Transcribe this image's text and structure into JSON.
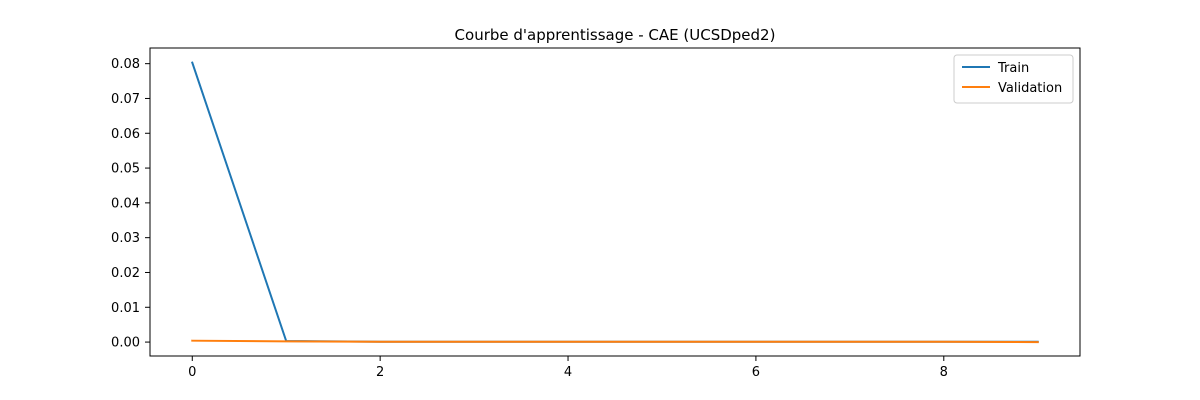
{
  "chart_data": {
    "type": "line",
    "title": "Courbe d'apprentissage - CAE (UCSDped2)",
    "xlabel": "",
    "ylabel": "",
    "x": [
      0,
      1,
      2,
      3,
      4,
      5,
      6,
      7,
      8,
      9
    ],
    "series": [
      {
        "name": "Train",
        "color": "#1f77b4",
        "values": [
          0.0803,
          0.0003,
          0.0001,
          0.0001,
          0.0001,
          0.0001,
          0.0001,
          0.0001,
          0.0001,
          0.0001
        ]
      },
      {
        "name": "Validation",
        "color": "#ff7f0e",
        "values": [
          0.0004,
          0.0002,
          0.0001,
          0.0001,
          0.0001,
          0.0001,
          0.0001,
          0.0001,
          0.0001,
          0.0
        ]
      }
    ],
    "xlim": [
      -0.45,
      9.45
    ],
    "ylim": [
      -0.004,
      0.0845
    ],
    "xticks": [
      0,
      2,
      4,
      6,
      8
    ],
    "yticks": [
      0.0,
      0.01,
      0.02,
      0.03,
      0.04,
      0.05,
      0.06,
      0.07,
      0.08
    ],
    "ytick_decimals": 2,
    "grid": false,
    "legend_position": "top-right"
  }
}
